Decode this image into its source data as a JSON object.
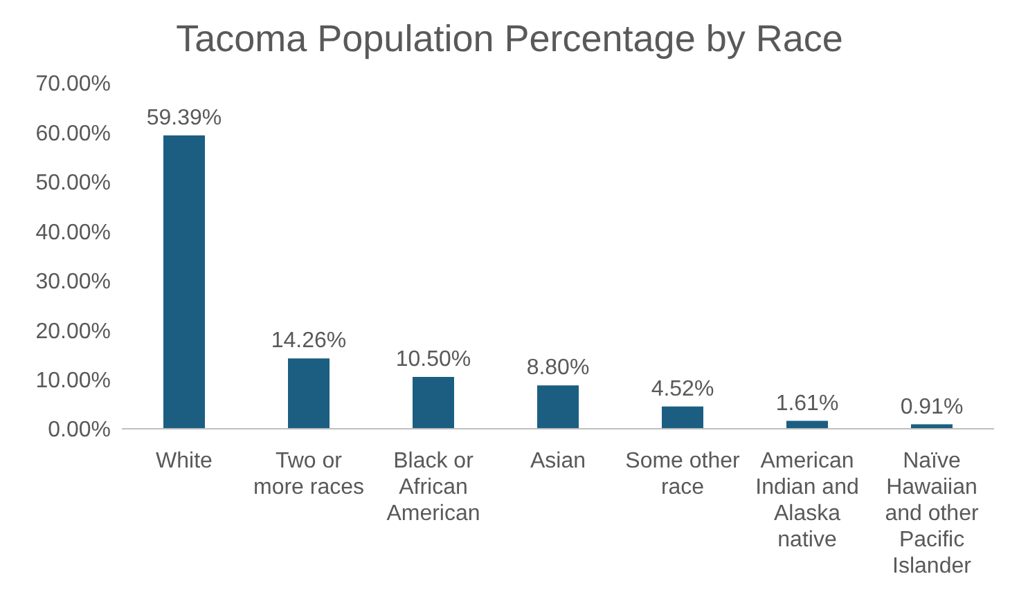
{
  "chart_data": {
    "type": "bar",
    "title": "Tacoma Population Percentage by Race",
    "categories": [
      "White",
      "Two or more races",
      "Black or African American",
      "Asian",
      "Some other race",
      "American Indian and Alaska native",
      "Naïve Hawaiian and other Pacific Islander"
    ],
    "values": [
      59.39,
      14.26,
      10.5,
      8.8,
      4.52,
      1.61,
      0.91
    ],
    "value_labels": [
      "59.39%",
      "14.26%",
      "10.50%",
      "8.80%",
      "4.52%",
      "1.61%",
      "0.91%"
    ],
    "color": "#1b5e82",
    "ylim": [
      0,
      70
    ],
    "yticks": [
      {
        "value": 0,
        "label": "0.00%"
      },
      {
        "value": 10,
        "label": "10.00%"
      },
      {
        "value": 20,
        "label": "20.00%"
      },
      {
        "value": 30,
        "label": "30.00%"
      },
      {
        "value": 40,
        "label": "40.00%"
      },
      {
        "value": 50,
        "label": "50.00%"
      },
      {
        "value": 60,
        "label": "60.00%"
      },
      {
        "value": 70,
        "label": "70.00%"
      }
    ],
    "grid": false,
    "legend": false
  }
}
